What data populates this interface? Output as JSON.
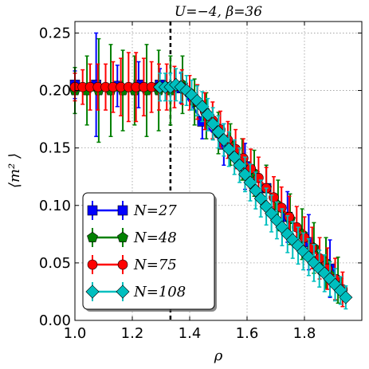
{
  "chart_data": {
    "type": "scatter",
    "title": "U=−4, β=36",
    "xlabel": "ρ",
    "ylabel": "⟨m² ⟩",
    "xlim": [
      1.0,
      2.0
    ],
    "ylim": [
      0.0,
      0.26
    ],
    "xticks": [
      "1.0",
      "1.2",
      "1.4",
      "1.6",
      "1.8"
    ],
    "xtick_values": [
      1.0,
      1.2,
      1.4,
      1.6,
      1.8
    ],
    "yticks": [
      "0.00",
      "0.05",
      "0.10",
      "0.15",
      "0.20",
      "0.25"
    ],
    "ytick_values": [
      0.0,
      0.05,
      0.1,
      0.15,
      0.2,
      0.25
    ],
    "grid": true,
    "legend_position": "lower-left",
    "vline": {
      "x": 1.333,
      "style": "dashed"
    },
    "series": [
      {
        "name": "N=27",
        "legend_label": "N=27",
        "color": "#0000ff",
        "marker": "square",
        "x": [
          1.0,
          1.074,
          1.148,
          1.222,
          1.296,
          1.37,
          1.444,
          1.519,
          1.593,
          1.667,
          1.741,
          1.815,
          1.889
        ],
        "y": [
          0.205,
          0.205,
          0.204,
          0.205,
          0.205,
          0.202,
          0.173,
          0.153,
          0.134,
          0.115,
          0.09,
          0.068,
          0.045
        ],
        "err": [
          0.012,
          0.045,
          0.018,
          0.02,
          0.014,
          0.013,
          0.015,
          0.018,
          0.02,
          0.02,
          0.022,
          0.024,
          0.025
        ]
      },
      {
        "name": "N=48",
        "legend_label": "N=48",
        "color": "#008000",
        "marker": "pentagon",
        "x": [
          1.0,
          1.042,
          1.083,
          1.125,
          1.167,
          1.208,
          1.25,
          1.292,
          1.333,
          1.375,
          1.417,
          1.458,
          1.5,
          1.542,
          1.583,
          1.625,
          1.667,
          1.708,
          1.75,
          1.792,
          1.833,
          1.875,
          1.917
        ],
        "y": [
          0.2,
          0.2,
          0.2,
          0.2,
          0.2,
          0.2,
          0.2,
          0.2,
          0.2,
          0.205,
          0.19,
          0.178,
          0.163,
          0.153,
          0.14,
          0.128,
          0.115,
          0.1,
          0.088,
          0.075,
          0.063,
          0.05,
          0.035
        ],
        "err": [
          0.02,
          0.03,
          0.045,
          0.04,
          0.035,
          0.03,
          0.04,
          0.035,
          0.03,
          0.025,
          0.02,
          0.02,
          0.018,
          0.018,
          0.018,
          0.02,
          0.02,
          0.022,
          0.022,
          0.022,
          0.022,
          0.022,
          0.02
        ]
      },
      {
        "name": "N=75",
        "legend_label": "N=75",
        "color": "#ff0000",
        "marker": "circle",
        "x": [
          1.0,
          1.027,
          1.053,
          1.08,
          1.107,
          1.133,
          1.16,
          1.187,
          1.213,
          1.24,
          1.267,
          1.293,
          1.32,
          1.347,
          1.373,
          1.4,
          1.427,
          1.453,
          1.48,
          1.507,
          1.533,
          1.56,
          1.587,
          1.613,
          1.64,
          1.667,
          1.693,
          1.72,
          1.747,
          1.773,
          1.8,
          1.827,
          1.853,
          1.88,
          1.907,
          1.933
        ],
        "y": [
          0.203,
          0.203,
          0.203,
          0.203,
          0.203,
          0.203,
          0.203,
          0.203,
          0.203,
          0.203,
          0.203,
          0.203,
          0.203,
          0.203,
          0.203,
          0.198,
          0.19,
          0.182,
          0.174,
          0.166,
          0.157,
          0.149,
          0.141,
          0.132,
          0.124,
          0.115,
          0.107,
          0.098,
          0.09,
          0.081,
          0.072,
          0.063,
          0.054,
          0.045,
          0.036,
          0.027
        ],
        "err": [
          0.012,
          0.015,
          0.02,
          0.02,
          0.02,
          0.022,
          0.025,
          0.03,
          0.03,
          0.025,
          0.022,
          0.02,
          0.02,
          0.018,
          0.015,
          0.015,
          0.015,
          0.016,
          0.016,
          0.016,
          0.016,
          0.017,
          0.017,
          0.017,
          0.018,
          0.018,
          0.018,
          0.018,
          0.018,
          0.018,
          0.018,
          0.018,
          0.018,
          0.018,
          0.018,
          0.015
        ]
      },
      {
        "name": "N=108",
        "legend_label": "N=108",
        "color": "#00bfbf",
        "marker": "diamond",
        "x": [
          1.296,
          1.315,
          1.333,
          1.352,
          1.37,
          1.389,
          1.407,
          1.426,
          1.444,
          1.463,
          1.481,
          1.5,
          1.519,
          1.537,
          1.556,
          1.574,
          1.593,
          1.611,
          1.63,
          1.648,
          1.667,
          1.685,
          1.704,
          1.722,
          1.741,
          1.759,
          1.778,
          1.796,
          1.815,
          1.833,
          1.852,
          1.87,
          1.889,
          1.907,
          1.926,
          1.944
        ],
        "y": [
          0.203,
          0.203,
          0.203,
          0.205,
          0.203,
          0.2,
          0.196,
          0.191,
          0.186,
          0.179,
          0.171,
          0.164,
          0.157,
          0.149,
          0.142,
          0.135,
          0.127,
          0.12,
          0.113,
          0.106,
          0.099,
          0.093,
          0.087,
          0.081,
          0.075,
          0.07,
          0.065,
          0.06,
          0.055,
          0.05,
          0.045,
          0.041,
          0.036,
          0.031,
          0.026,
          0.02
        ],
        "err": [
          0.012,
          0.012,
          0.012,
          0.014,
          0.013,
          0.013,
          0.013,
          0.013,
          0.013,
          0.014,
          0.014,
          0.014,
          0.014,
          0.015,
          0.015,
          0.015,
          0.015,
          0.016,
          0.016,
          0.016,
          0.016,
          0.016,
          0.016,
          0.016,
          0.016,
          0.016,
          0.016,
          0.016,
          0.016,
          0.016,
          0.016,
          0.016,
          0.015,
          0.014,
          0.012,
          0.01
        ]
      }
    ]
  }
}
